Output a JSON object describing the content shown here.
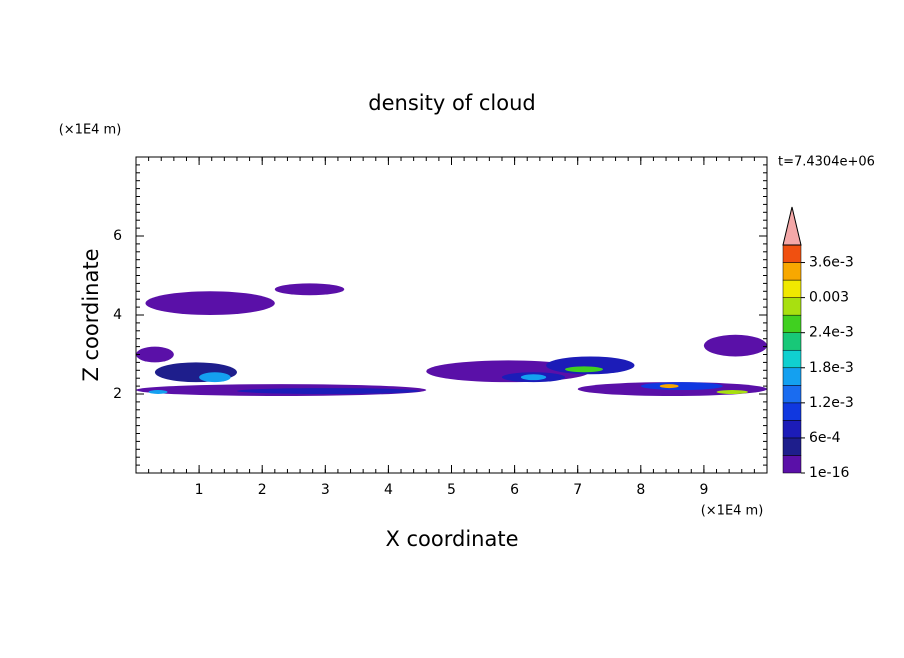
{
  "chart_data": {
    "type": "contour",
    "title": "density of cloud",
    "xlabel": "X coordinate",
    "ylabel": "Z coordinate",
    "xunit": "(×1E4 m)",
    "yunit": "(×1E4 m)",
    "time_label": "t=7.4304e+06",
    "xlim": [
      0,
      10
    ],
    "ylim": [
      0,
      8
    ],
    "xticks": [
      1,
      2,
      3,
      4,
      5,
      6,
      7,
      8,
      9
    ],
    "yticks": [
      2,
      4,
      6
    ],
    "levels": [
      1e-16,
      0.0003,
      0.0006,
      0.0009,
      0.0012,
      0.0015,
      0.0018,
      0.0021,
      0.0024,
      0.0027,
      0.003,
      0.0033,
      0.0036,
      0.0039
    ],
    "colors": [
      "#5a10a8",
      "#1e1e8c",
      "#1c1cb8",
      "#1038e0",
      "#1a6cf0",
      "#14a0f0",
      "#10d0d0",
      "#18c878",
      "#40d020",
      "#a8e010",
      "#f0e800",
      "#f8a800",
      "#f05010",
      "#e01818"
    ],
    "extend_color": "#f4a8a8",
    "cbticks": [
      1e-16,
      {
        "value": 0.0006,
        "label": "6e-4"
      },
      {
        "value": 0.0012,
        "label": "1.2e-3"
      },
      {
        "value": 0.0018,
        "label": "1.8e-3"
      },
      {
        "value": 0.0024,
        "label": "2.4e-3"
      },
      0.003,
      {
        "value": 0.0036,
        "label": "3.6e-3"
      }
    ],
    "patches": [
      {
        "x": [
          0.15,
          2.2
        ],
        "z": [
          4.0,
          4.6
        ],
        "value": 0.0002
      },
      {
        "x": [
          2.2,
          3.3
        ],
        "z": [
          4.5,
          4.8
        ],
        "value": 0.0002
      },
      {
        "x": [
          0,
          0.6
        ],
        "z": [
          2.8,
          3.2
        ],
        "value": 0.0002
      },
      {
        "x": [
          0.3,
          1.6
        ],
        "z": [
          2.3,
          2.8
        ],
        "value": 0.0005
      },
      {
        "x": [
          0,
          4.6
        ],
        "z": [
          1.95,
          2.25
        ],
        "value": 0.0002
      },
      {
        "x": [
          1.6,
          4.5
        ],
        "z": [
          2.0,
          2.15
        ],
        "value": 0.0008
      },
      {
        "x": [
          1.0,
          1.5
        ],
        "z": [
          2.3,
          2.55
        ],
        "value": 0.0015
      },
      {
        "x": [
          0.2,
          0.5
        ],
        "z": [
          2.0,
          2.1
        ],
        "value": 0.0015
      },
      {
        "x": [
          4.6,
          7.2
        ],
        "z": [
          2.3,
          2.85
        ],
        "value": 0.0002
      },
      {
        "x": [
          5.8,
          6.8
        ],
        "z": [
          2.3,
          2.55
        ],
        "value": 0.0008
      },
      {
        "x": [
          6.1,
          6.5
        ],
        "z": [
          2.35,
          2.5
        ],
        "value": 0.0016
      },
      {
        "x": [
          6.5,
          7.9
        ],
        "z": [
          2.5,
          2.95
        ],
        "value": 0.0006
      },
      {
        "x": [
          6.8,
          7.4
        ],
        "z": [
          2.55,
          2.7
        ],
        "value": 0.0025
      },
      {
        "x": [
          7.0,
          10
        ],
        "z": [
          1.95,
          2.3
        ],
        "value": 0.0002
      },
      {
        "x": [
          8.0,
          9.3
        ],
        "z": [
          2.1,
          2.3
        ],
        "value": 0.001
      },
      {
        "x": [
          8.3,
          8.6
        ],
        "z": [
          2.15,
          2.25
        ],
        "value": 0.0033
      },
      {
        "x": [
          9.2,
          9.7
        ],
        "z": [
          2.0,
          2.1
        ],
        "value": 0.0028
      },
      {
        "x": [
          9.0,
          10
        ],
        "z": [
          2.95,
          3.5
        ],
        "value": 0.0002
      }
    ]
  }
}
